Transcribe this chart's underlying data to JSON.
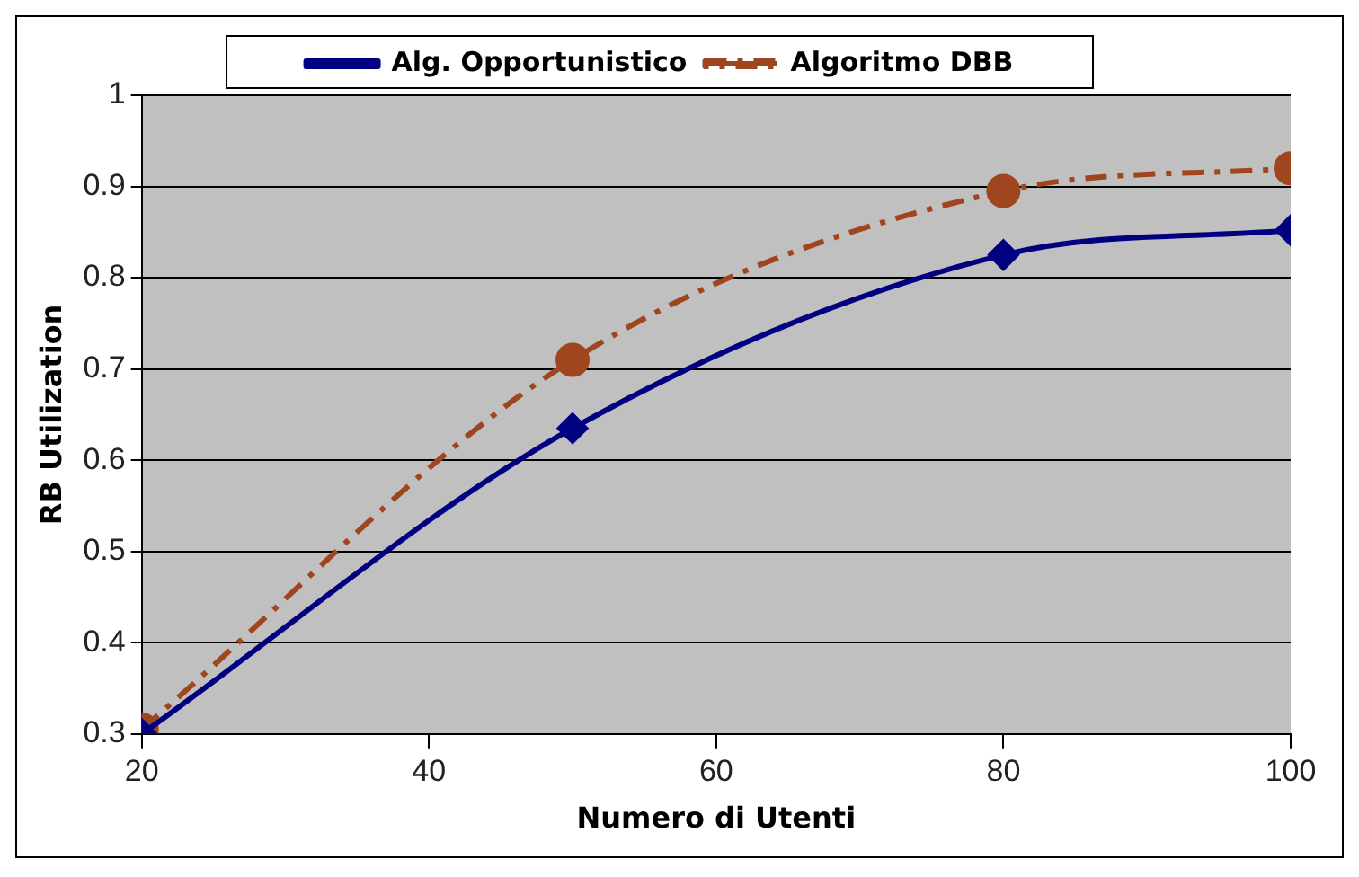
{
  "chart_data": {
    "type": "line",
    "xlabel": "Numero di Utenti",
    "ylabel": "RB Utilization",
    "x": [
      20,
      50,
      80,
      100
    ],
    "series": [
      {
        "name": "Alg. Opportunistico",
        "color": "#000080",
        "values": [
          0.3,
          0.635,
          0.825,
          0.852
        ],
        "marker": "diamond",
        "line_style": "solid"
      },
      {
        "name": "Algoritmo DBB",
        "color": "#a0461e",
        "values": [
          0.305,
          0.71,
          0.895,
          0.92
        ],
        "marker": "circle",
        "line_style": "dashed"
      }
    ],
    "xlim": [
      20,
      100
    ],
    "xticks": [
      20,
      40,
      60,
      80,
      100
    ],
    "ylim": [
      0.3,
      1
    ],
    "yticks": [
      0.3,
      0.4,
      0.5,
      0.6,
      0.7,
      0.8,
      0.9,
      1
    ],
    "grid": "y",
    "legend": "top"
  }
}
